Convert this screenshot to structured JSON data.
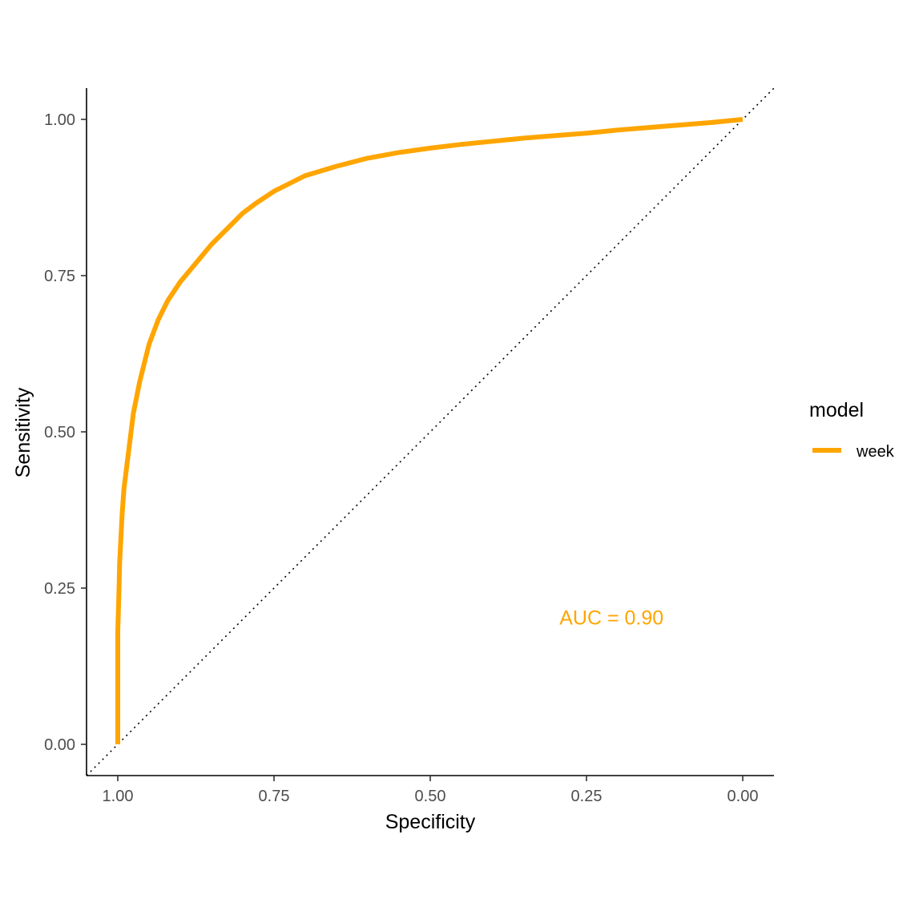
{
  "chart_data": {
    "type": "line",
    "xlabel": "Specificity",
    "ylabel": "Sensitivity",
    "x_reversed": true,
    "xlim": [
      1.05,
      -0.05
    ],
    "ylim": [
      -0.05,
      1.05
    ],
    "x_ticks": [
      1.0,
      0.75,
      0.5,
      0.25,
      0.0
    ],
    "x_tick_labels": [
      "1.00",
      "0.75",
      "0.50",
      "0.25",
      "0.00"
    ],
    "y_ticks": [
      0.0,
      0.25,
      0.5,
      0.75,
      1.0
    ],
    "y_tick_labels": [
      "0.00",
      "0.25",
      "0.50",
      "0.75",
      "1.00"
    ],
    "grid": false,
    "legend": {
      "title": "model",
      "position": "right"
    },
    "reference_line": {
      "style": "dotted",
      "from": [
        1.0,
        0.0
      ],
      "to": [
        0.0,
        1.0
      ],
      "color": "#000000"
    },
    "annotation": {
      "text": "AUC = 0.90",
      "x": 0.21,
      "y": 0.2,
      "color": "#FFA500"
    },
    "series": [
      {
        "name": "week",
        "color": "#FFA500",
        "x": [
          1.0,
          1.0,
          0.998,
          0.997,
          0.995,
          0.993,
          0.99,
          0.985,
          0.98,
          0.975,
          0.965,
          0.95,
          0.935,
          0.92,
          0.9,
          0.875,
          0.85,
          0.82,
          0.8,
          0.78,
          0.75,
          0.72,
          0.7,
          0.65,
          0.6,
          0.55,
          0.5,
          0.45,
          0.4,
          0.35,
          0.3,
          0.25,
          0.2,
          0.15,
          0.1,
          0.05,
          0.0
        ],
        "y": [
          0.0,
          0.18,
          0.25,
          0.29,
          0.33,
          0.37,
          0.41,
          0.45,
          0.49,
          0.53,
          0.58,
          0.64,
          0.68,
          0.71,
          0.74,
          0.77,
          0.8,
          0.83,
          0.85,
          0.865,
          0.885,
          0.9,
          0.91,
          0.925,
          0.938,
          0.947,
          0.954,
          0.96,
          0.965,
          0.97,
          0.974,
          0.978,
          0.983,
          0.987,
          0.991,
          0.995,
          1.0
        ]
      }
    ]
  }
}
